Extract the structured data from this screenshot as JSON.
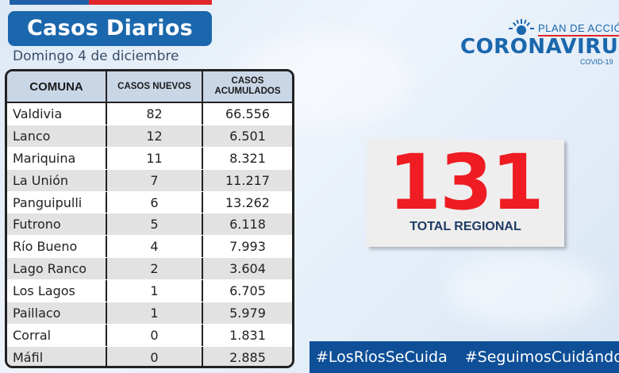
{
  "header": {
    "title": "Casos Diarios",
    "date": "Domingo 4 de diciembre"
  },
  "table": {
    "columns": [
      "COMUNA",
      "CASOS NUEVOS",
      "CASOS",
      "ACUMULADOS"
    ],
    "rows": [
      {
        "comuna": "Valdivia",
        "nuevos": "82",
        "acumulados": "66.556"
      },
      {
        "comuna": "Lanco",
        "nuevos": "12",
        "acumulados": "6.501"
      },
      {
        "comuna": "Mariquina",
        "nuevos": "11",
        "acumulados": "8.321"
      },
      {
        "comuna": "La Unión",
        "nuevos": "7",
        "acumulados": "11.217"
      },
      {
        "comuna": "Panguipulli",
        "nuevos": "6",
        "acumulados": "13.262"
      },
      {
        "comuna": "Futrono",
        "nuevos": "5",
        "acumulados": "6.118"
      },
      {
        "comuna": "Río Bueno",
        "nuevos": "4",
        "acumulados": "7.993"
      },
      {
        "comuna": "Lago Ranco",
        "nuevos": "2",
        "acumulados": "3.604"
      },
      {
        "comuna": "Los Lagos",
        "nuevos": "1",
        "acumulados": "6.705"
      },
      {
        "comuna": "Paillaco",
        "nuevos": "1",
        "acumulados": "5.979"
      },
      {
        "comuna": "Corral",
        "nuevos": "0",
        "acumulados": "1.831"
      },
      {
        "comuna": "Máfil",
        "nuevos": "0",
        "acumulados": "2.885"
      }
    ]
  },
  "logo": {
    "plan": "PLAN DE ACCIÓN",
    "name": "CORONAVIRUS",
    "sub": "COVID-19",
    "icon": "sun-rays-icon"
  },
  "total": {
    "value": "131",
    "label": "TOTAL REGIONAL"
  },
  "hashtags": [
    "#LosRíosSeCuida",
    "#SeguimosCuidándonos"
  ],
  "colors": {
    "brand_blue": "#1a67ad",
    "flag_red": "#e0262a",
    "total_red": "#ef1c23",
    "hashtag_bg": "#0e4f98"
  }
}
